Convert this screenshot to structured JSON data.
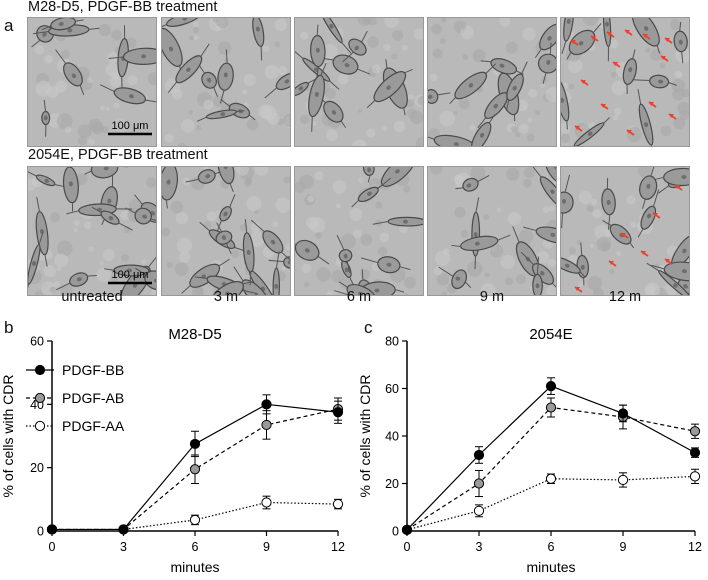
{
  "figure": {
    "panel_a": "a",
    "panel_b": "b",
    "panel_c": "c",
    "row1_title": "M28-D5, PDGF-BB treatment",
    "row2_title": "2054E, PDGF-BB treatment",
    "scale_bar": "100 μm",
    "columns": [
      "untreated",
      "3 m",
      "6 m",
      "9 m",
      "12 m"
    ],
    "colors": {
      "arrow": "#e8432e",
      "cell_bg": "#b9b9b9",
      "cell_dark": "#4a4a4a"
    }
  },
  "chart_data": [
    {
      "type": "line",
      "title": "M28-D5",
      "xlabel": "minutes",
      "ylabel": "% of cells with CDR",
      "x": [
        0,
        3,
        6,
        9,
        12
      ],
      "xlim": [
        0,
        12
      ],
      "ylim": [
        0,
        60
      ],
      "yticks": [
        0,
        20,
        40,
        60
      ],
      "xticks": [
        0,
        3,
        6,
        9,
        12
      ],
      "legend": "top-left",
      "series": [
        {
          "name": "PDGF-BB",
          "values": [
            0.5,
            0.5,
            27.5,
            40,
            37.5
          ],
          "errors": [
            0.5,
            0.5,
            4,
            3,
            3.5
          ],
          "marker": "filled-black",
          "line": "solid"
        },
        {
          "name": "PDGF-AB",
          "values": [
            0.5,
            0.5,
            19.5,
            33.5,
            38.5
          ],
          "errors": [
            0.5,
            0.5,
            4.5,
            4.5,
            3.5
          ],
          "marker": "filled-grey",
          "line": "dashed"
        },
        {
          "name": "PDGF-AA",
          "values": [
            0.5,
            0.5,
            3.5,
            9,
            8.5
          ],
          "errors": [
            0.5,
            0.5,
            1.5,
            2,
            1.5
          ],
          "marker": "open",
          "line": "dotted"
        }
      ]
    },
    {
      "type": "line",
      "title": "2054E",
      "xlabel": "minutes",
      "ylabel": "% of cells with CDR",
      "x": [
        0,
        3,
        6,
        9,
        12
      ],
      "xlim": [
        0,
        12
      ],
      "ylim": [
        0,
        80
      ],
      "yticks": [
        0,
        20,
        40,
        60,
        80
      ],
      "xticks": [
        0,
        3,
        6,
        9,
        12
      ],
      "series": [
        {
          "name": "PDGF-BB",
          "values": [
            0.5,
            32,
            61,
            49.5,
            33
          ],
          "errors": [
            0.5,
            3.5,
            3.5,
            3.5,
            2
          ],
          "marker": "filled-black",
          "line": "solid"
        },
        {
          "name": "PDGF-AB",
          "values": [
            0.5,
            20,
            52,
            48,
            42
          ],
          "errors": [
            0.5,
            5.5,
            4,
            5,
            3
          ],
          "marker": "filled-grey",
          "line": "dashed"
        },
        {
          "name": "PDGF-AA",
          "values": [
            0.5,
            8.5,
            22,
            21.5,
            23
          ],
          "errors": [
            0.5,
            2.5,
            2,
            3,
            3
          ],
          "marker": "open",
          "line": "dotted"
        }
      ]
    }
  ]
}
